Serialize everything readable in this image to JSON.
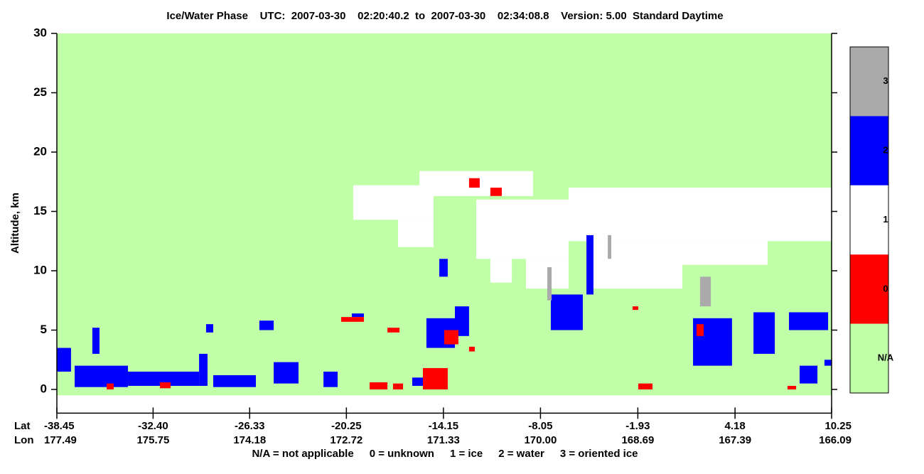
{
  "chart_data": {
    "type": "feature_mask",
    "title": "Ice/Water Phase    UTC:  2007-03-30    02:20:40.2  to  2007-03-30    02:34:08.8    Version: 5.00  Standard Daytime",
    "ylabel": "Altitude, km",
    "ylim": [
      -2,
      30
    ],
    "yticks": [
      0,
      5,
      10,
      15,
      20,
      25,
      30
    ],
    "xlim": [
      -38.45,
      10.25
    ],
    "row_labels": [
      "Lat",
      "Lon"
    ],
    "xticks": [
      -38.45,
      {
        "value": -32.4,
        "label": "-32.40"
      },
      -26.33,
      -20.25,
      -14.15,
      -8.05,
      -1.93,
      4.18,
      10.25
    ],
    "xtick_lon": [
      177.49,
      175.75,
      174.18,
      172.72,
      171.33,
      {
        "value": 170,
        "label": "170.00"
      },
      168.69,
      167.39,
      166.09
    ],
    "grid": false,
    "colorbar": [
      {
        "label": "3",
        "color": "#aaaaaa"
      },
      {
        "label": "2",
        "color": "#0000ff"
      },
      {
        "label": "1",
        "color": "#ffffff"
      },
      {
        "label": "0",
        "color": "#ff0000"
      },
      {
        "label": "N/A",
        "color": "#c0ffa8"
      }
    ],
    "legend_text": [
      "N/A = not applicable",
      "0 = unknown",
      "1 = ice",
      "2 = water",
      "3 = oriented ice"
    ],
    "features": [
      {
        "phase": "N/A",
        "lat": [
          -38.45,
          10.25
        ],
        "alt": [
          -0.5,
          30
        ]
      },
      {
        "phase": "1",
        "lat": [
          -19.82,
          -14.77
        ],
        "alt": [
          14.3,
          17.2
        ]
      },
      {
        "phase": "1",
        "lat": [
          -17.0,
          -14.77
        ],
        "alt": [
          12,
          14.3
        ]
      },
      {
        "phase": "1",
        "lat": [
          -15.66,
          -8.52
        ],
        "alt": [
          16.3,
          18.4
        ]
      },
      {
        "phase": "1",
        "lat": [
          -12.09,
          -6.28
        ],
        "alt": [
          11,
          16
        ]
      },
      {
        "phase": "1",
        "lat": [
          -8.96,
          -6.28
        ],
        "alt": [
          8.5,
          11
        ]
      },
      {
        "phase": "1",
        "lat": [
          -11.2,
          -9.85
        ],
        "alt": [
          9,
          11
        ]
      },
      {
        "phase": "1",
        "lat": [
          -6.28,
          10.25
        ],
        "alt": [
          12.5,
          17
        ]
      },
      {
        "phase": "1",
        "lat": [
          -4.94,
          0.87
        ],
        "alt": [
          8.5,
          12.5
        ]
      },
      {
        "phase": "1",
        "lat": [
          0.87,
          6.23
        ],
        "alt": [
          10.5,
          12.5
        ]
      },
      {
        "phase": "2",
        "lat": [
          -38.45,
          -37.56
        ],
        "alt": [
          1.5,
          3.5
        ]
      },
      {
        "phase": "2",
        "lat": [
          -37.33,
          -33.98
        ],
        "alt": [
          0.2,
          2
        ]
      },
      {
        "phase": "2",
        "lat": [
          -36.22,
          -35.77
        ],
        "alt": [
          3,
          5.2
        ]
      },
      {
        "phase": "2",
        "lat": [
          -33.98,
          -29.51
        ],
        "alt": [
          0.3,
          1.5
        ]
      },
      {
        "phase": "2",
        "lat": [
          -29.51,
          -28.98
        ],
        "alt": [
          0.3,
          3
        ]
      },
      {
        "phase": "2",
        "lat": [
          -29.07,
          -28.62
        ],
        "alt": [
          4.8,
          5.5
        ]
      },
      {
        "phase": "2",
        "lat": [
          -28.62,
          -25.94
        ],
        "alt": [
          0.2,
          1.2
        ]
      },
      {
        "phase": "2",
        "lat": [
          -25.72,
          -24.82
        ],
        "alt": [
          5,
          5.8
        ]
      },
      {
        "phase": "2",
        "lat": [
          -24.82,
          -23.26
        ],
        "alt": [
          0.5,
          2.3
        ]
      },
      {
        "phase": "2",
        "lat": [
          -21.69,
          -20.8
        ],
        "alt": [
          0.2,
          1.5
        ]
      },
      {
        "phase": "2",
        "lat": [
          -19.91,
          -19.15
        ],
        "alt": [
          6.1,
          6.4
        ]
      },
      {
        "phase": "2",
        "lat": [
          -16.11,
          -14.32
        ],
        "alt": [
          0.3,
          1
        ]
      },
      {
        "phase": "2",
        "lat": [
          -14.41,
          -13.88
        ],
        "alt": [
          9.5,
          11
        ]
      },
      {
        "phase": "2",
        "lat": [
          -15.22,
          -13.43
        ],
        "alt": [
          3.5,
          6
        ]
      },
      {
        "phase": "2",
        "lat": [
          -13.43,
          -12.54
        ],
        "alt": [
          4.5,
          7
        ]
      },
      {
        "phase": "2",
        "lat": [
          -7.4,
          -5.39
        ],
        "alt": [
          5,
          8
        ]
      },
      {
        "phase": "2",
        "lat": [
          -5.16,
          -4.72
        ],
        "alt": [
          8,
          13
        ]
      },
      {
        "phase": "2",
        "lat": [
          1.54,
          3.99
        ],
        "alt": [
          2,
          6
        ]
      },
      {
        "phase": "2",
        "lat": [
          5.34,
          6.68
        ],
        "alt": [
          3,
          6.5
        ]
      },
      {
        "phase": "2",
        "lat": [
          7.57,
          10.03
        ],
        "alt": [
          5,
          6.5
        ]
      },
      {
        "phase": "2",
        "lat": [
          8.24,
          9.36
        ],
        "alt": [
          0.5,
          2
        ]
      },
      {
        "phase": "2",
        "lat": [
          9.8,
          10.25
        ],
        "alt": [
          2,
          2.5
        ]
      },
      {
        "phase": "0",
        "lat": [
          -12.54,
          -11.87
        ],
        "alt": [
          17,
          17.8
        ]
      },
      {
        "phase": "0",
        "lat": [
          -11.2,
          -10.48
        ],
        "alt": [
          16.3,
          17
        ]
      },
      {
        "phase": "0",
        "lat": [
          -20.58,
          -19.15
        ],
        "alt": [
          5.7,
          6.1
        ]
      },
      {
        "phase": "0",
        "lat": [
          -17.67,
          -16.91
        ],
        "alt": [
          4.8,
          5.2
        ]
      },
      {
        "phase": "0",
        "lat": [
          -15.44,
          -13.88
        ],
        "alt": [
          0,
          1.8
        ]
      },
      {
        "phase": "0",
        "lat": [
          -18.79,
          -17.67
        ],
        "alt": [
          0,
          0.6
        ]
      },
      {
        "phase": "0",
        "lat": [
          -17.32,
          -16.69
        ],
        "alt": [
          0,
          0.5
        ]
      },
      {
        "phase": "0",
        "lat": [
          -14.1,
          -13.21
        ],
        "alt": [
          3.8,
          5
        ]
      },
      {
        "phase": "0",
        "lat": [
          -12.54,
          -12.18
        ],
        "alt": [
          3.2,
          3.6
        ]
      },
      {
        "phase": "0",
        "lat": [
          -1.9,
          -1.01
        ],
        "alt": [
          0,
          0.5
        ]
      },
      {
        "phase": "0",
        "lat": [
          -2.26,
          -1.9
        ],
        "alt": [
          6.7,
          7
        ]
      },
      {
        "phase": "0",
        "lat": [
          1.76,
          2.21
        ],
        "alt": [
          4.5,
          5.5
        ]
      },
      {
        "phase": "0",
        "lat": [
          7.48,
          8.02
        ],
        "alt": [
          0,
          0.3
        ]
      },
      {
        "phase": "0",
        "lat": [
          -35.32,
          -34.88
        ],
        "alt": [
          0,
          0.5
        ]
      },
      {
        "phase": "0",
        "lat": [
          -31.97,
          -31.3
        ],
        "alt": [
          0.1,
          0.6
        ]
      },
      {
        "phase": "3",
        "lat": [
          -7.62,
          -7.35
        ],
        "alt": [
          7.5,
          10.3
        ]
      },
      {
        "phase": "3",
        "lat": [
          1.98,
          2.66
        ],
        "alt": [
          7,
          9.5
        ]
      },
      {
        "phase": "3",
        "lat": [
          -3.82,
          -3.6
        ],
        "alt": [
          11,
          13
        ]
      }
    ]
  }
}
